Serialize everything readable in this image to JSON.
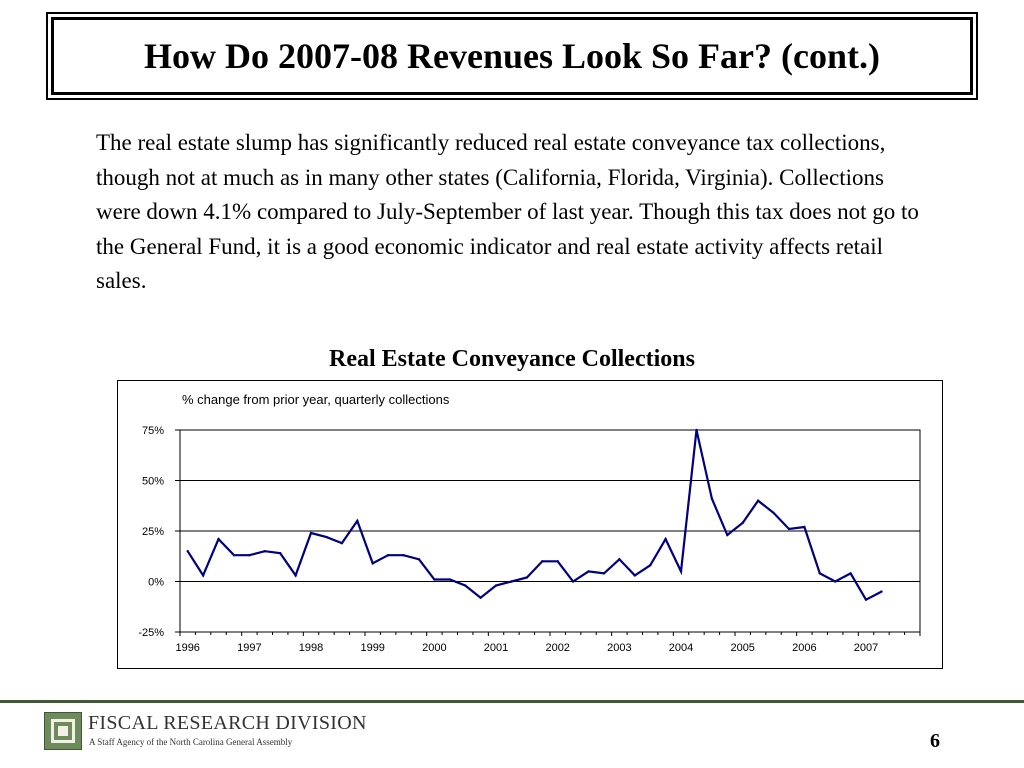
{
  "slide": {
    "title": "How Do 2007-08 Revenues Look So Far? (cont.)",
    "body": "The real estate slump has significantly reduced real estate conveyance tax collections, though not at much as in many other states (California, Florida, Virginia). Collections were down 4.1% compared to July-September of last year. Though this tax does not go to the General Fund, it is a good economic indicator and real estate activity affects retail sales.",
    "chart_title": "Real Estate Conveyance Collections",
    "page_number": "6"
  },
  "footer": {
    "org_name": "FISCAL RESEARCH DIVISION",
    "tagline": "A Staff Agency of the North Carolina General Assembly",
    "line_color": "#3f5a33"
  },
  "chart_data": {
    "type": "line",
    "title": "Real Estate Conveyance Collections",
    "subtitle": "% change from prior year, quarterly collections",
    "xlabel": "",
    "ylabel": "",
    "ylim": [
      -25,
      75
    ],
    "yticks": [
      -25,
      0,
      25,
      50,
      75
    ],
    "ytick_labels": [
      "-25%",
      "0%",
      "25%",
      "50%",
      "75%"
    ],
    "x_tick_labels": [
      "1996",
      "1997",
      "1998",
      "1999",
      "2000",
      "2001",
      "2002",
      "2003",
      "2004",
      "2005",
      "2006",
      "2007"
    ],
    "grid": true,
    "legend": "none",
    "line_color": "#000080",
    "series": [
      {
        "values": [
          15,
          3,
          21,
          13,
          13,
          15,
          14,
          3,
          24,
          22,
          19,
          30,
          9,
          13,
          13,
          11,
          1,
          1,
          -2,
          -8,
          -2,
          0,
          2,
          10,
          10,
          0,
          5,
          4,
          11,
          3,
          8,
          21,
          5,
          75,
          41,
          23,
          29,
          40,
          34,
          26,
          27,
          4,
          0,
          4,
          -9,
          -5
        ]
      }
    ]
  }
}
